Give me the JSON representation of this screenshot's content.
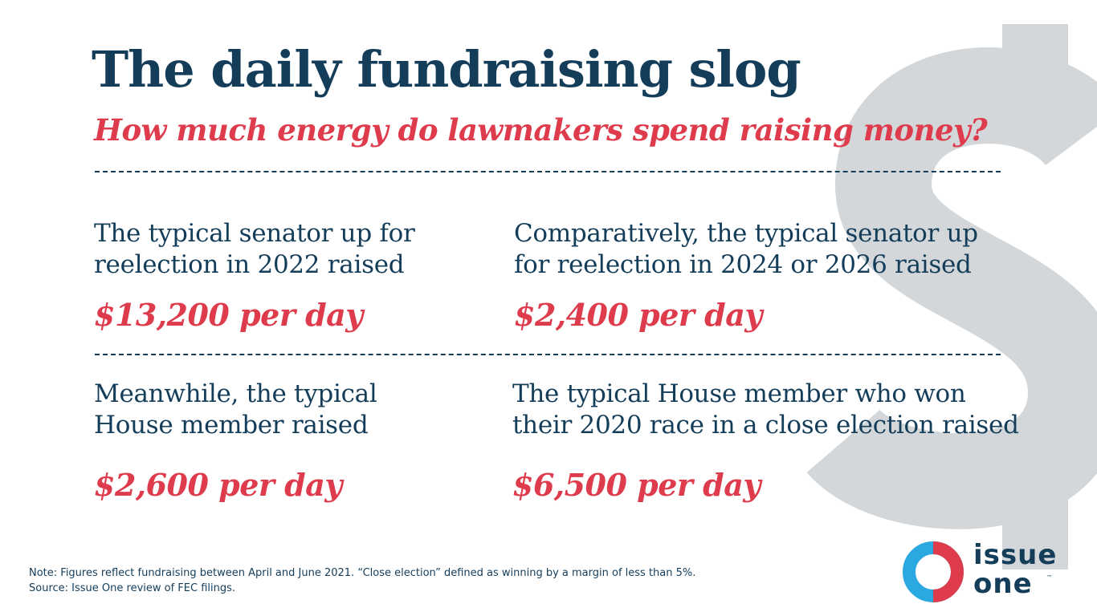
{
  "title": "The daily fundraising slog",
  "subtitle": "How much energy do lawmakers spend raising money?",
  "stats": [
    {
      "desc_lines": [
        "The typical senator up for",
        "reelection in 2022 raised"
      ],
      "amount": "$13,200 per day"
    },
    {
      "desc_lines": [
        "Comparatively, the typical senator up",
        "for reelection in 2024 or 2026 raised"
      ],
      "amount": "$2,400 per day"
    },
    {
      "desc_lines": [
        "Meanwhile, the typical",
        "House member raised"
      ],
      "amount": "$2,600 per day"
    },
    {
      "desc_lines": [
        "The typical House member who won",
        "their 2020 race in a close election raised"
      ],
      "amount": "$6,500 per day"
    }
  ],
  "note_lines": [
    "Note: Figures reflect fundraising between April and June 2021. “Close election” defined as winning by a margin of less than 5%.",
    "Source: Issue One review of FEC filings."
  ],
  "logo": {
    "line1": "issue",
    "line2": "one",
    "tm": "™"
  },
  "colors": {
    "navy": "#143d5a",
    "red": "#de3b4c",
    "dollar_gray": "#d3d7da",
    "logo_blue": "#2aa9e0"
  },
  "icons": {
    "background": "dollar-sign-icon",
    "logo": "issue-one-ring-icon"
  }
}
